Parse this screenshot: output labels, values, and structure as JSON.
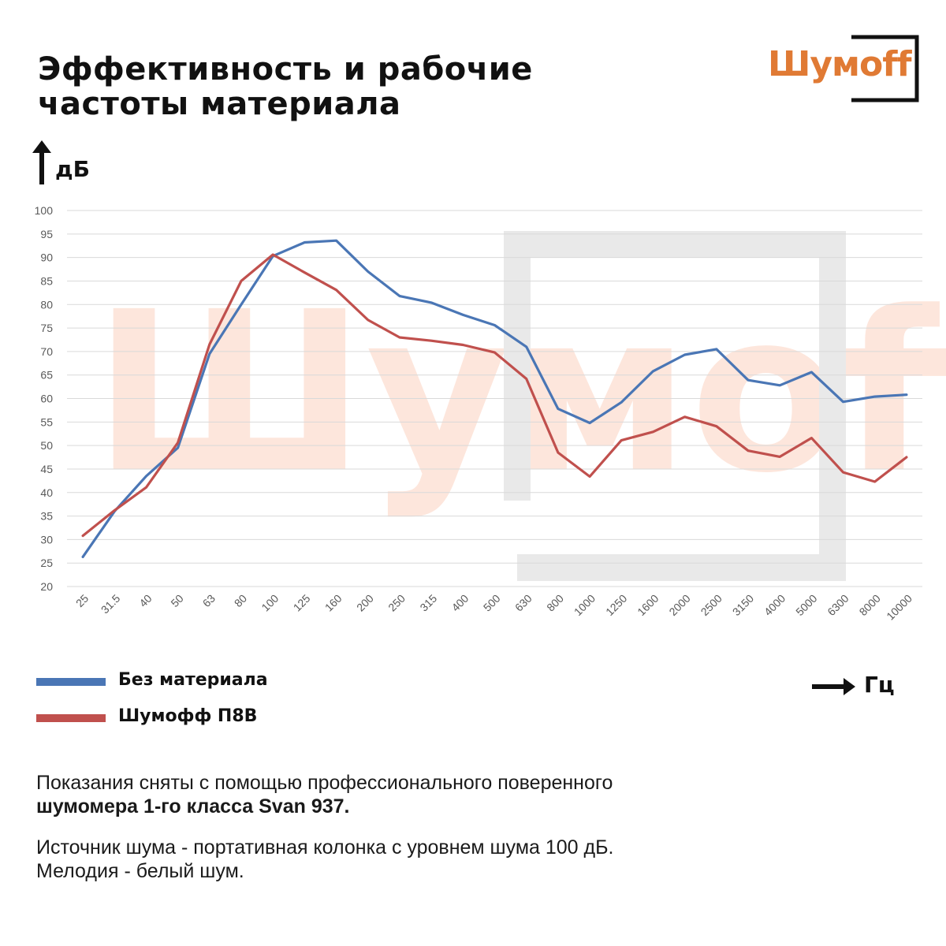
{
  "title": {
    "line1": "Эффективность и рабочие",
    "line2": "частоты материала"
  },
  "logo": {
    "text": "Шумoff"
  },
  "watermark": {
    "text": "Шумoff"
  },
  "chart_data": {
    "type": "line",
    "ylabel": "дБ",
    "xlabel": "Гц",
    "ylim": [
      20,
      100
    ],
    "y_ticks": [
      20,
      25,
      30,
      35,
      40,
      45,
      50,
      55,
      60,
      65,
      70,
      75,
      80,
      85,
      90,
      95,
      100
    ],
    "grid": true,
    "legend_position": "bottom-left",
    "categories": [
      "25",
      "31.5",
      "40",
      "50",
      "63",
      "80",
      "100",
      "125",
      "160",
      "200",
      "250",
      "315",
      "400",
      "500",
      "630",
      "800",
      "1000",
      "1250",
      "1600",
      "2000",
      "2500",
      "3150",
      "4000",
      "5000",
      "6300",
      "8000",
      "10000"
    ],
    "series": [
      {
        "name": "Без материала",
        "color": "#4a76b5",
        "values": [
          26.3,
          36,
          43.5,
          49.5,
          69.5,
          80,
          90.3,
          93.2,
          93.6,
          87,
          81.8,
          80.4,
          77.8,
          75.6,
          71,
          57.8,
          54.8,
          59.2,
          65.8,
          69.3,
          70.5,
          63.9,
          62.8,
          65.6,
          59.3,
          60.4,
          60.8
        ]
      },
      {
        "name": "Шумофф П8В",
        "color": "#c0504d",
        "values": [
          30.8,
          36.2,
          41.1,
          50.6,
          71.5,
          85,
          90.6,
          86.8,
          83.1,
          76.7,
          73,
          72.3,
          71.4,
          69.8,
          64.2,
          48.5,
          43.4,
          51.1,
          52.9,
          56.1,
          54.1,
          48.9,
          47.6,
          51.6,
          44.3,
          42.3,
          47.5
        ]
      }
    ]
  },
  "notes": {
    "line1": "Показания сняты с помощью профессионального поверенного",
    "line2": "шумомера 1-го класса Svan 937.",
    "line3": "Источник шума - портативная колонка с уровнем шума 100 дБ.",
    "line4": "Мелодия - белый шум."
  }
}
